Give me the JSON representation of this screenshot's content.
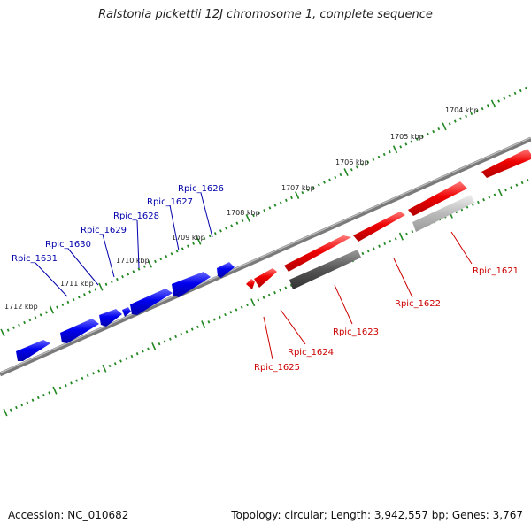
{
  "title": "Ralstonia pickettii 12J chromosome 1, complete sequence",
  "footer": {
    "accession": "Accession: NC_010682",
    "summary": "Topology: circular; Length: 3,942,557 bp; Genes: 3,767"
  },
  "colors": {
    "forward_gene": "#ee0000",
    "reverse_gene": "#0000dd",
    "pseudo_dark": "#555555",
    "pseudo_light": "#bbbbbb",
    "backbone": "#777777",
    "tick": "#228822",
    "label_forward": "#cc0000",
    "label_reverse": "#0000aa"
  },
  "kbp_labels": [
    "1704 kbp",
    "1705 kbp",
    "1706 kbp",
    "1707 kbp",
    "1708 kbp",
    "1709 kbp",
    "1710 kbp",
    "1711 kbp",
    "1712 kbp"
  ],
  "genes_forward": [
    "Rpic_1621",
    "Rpic_1622",
    "Rpic_1623",
    "Rpic_1624",
    "Rpic_1625"
  ],
  "genes_reverse": [
    "Rpic_1626",
    "Rpic_1627",
    "Rpic_1628",
    "Rpic_1629",
    "Rpic_1630",
    "Rpic_1631"
  ]
}
